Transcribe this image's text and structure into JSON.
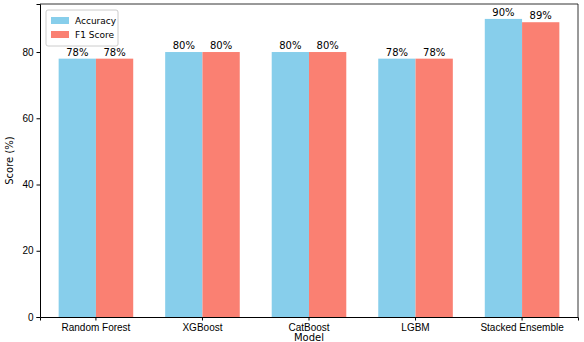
{
  "chart_data": {
    "type": "bar",
    "x_label": "Model",
    "y_label": "Score (%)",
    "categories": [
      "Random Forest",
      "XGBoost",
      "CatBoost",
      "LGBM",
      "Stacked Ensemble"
    ],
    "series": [
      {
        "name": "Accuracy",
        "color": "#87ceeb",
        "values": [
          78,
          80,
          80,
          78,
          90
        ],
        "value_labels": [
          "78%",
          "80%",
          "80%",
          "78%",
          "90%"
        ]
      },
      {
        "name": "F1 Score",
        "color": "#fa8072",
        "values": [
          78,
          80,
          80,
          78,
          89
        ],
        "value_labels": [
          "78%",
          "80%",
          "80%",
          "78%",
          "89%"
        ]
      }
    ],
    "ylim": [
      0,
      94.5
    ],
    "yticks": [
      0,
      20,
      40,
      60,
      80
    ],
    "data_labels": true,
    "legend": "upper left",
    "grid": false
  }
}
